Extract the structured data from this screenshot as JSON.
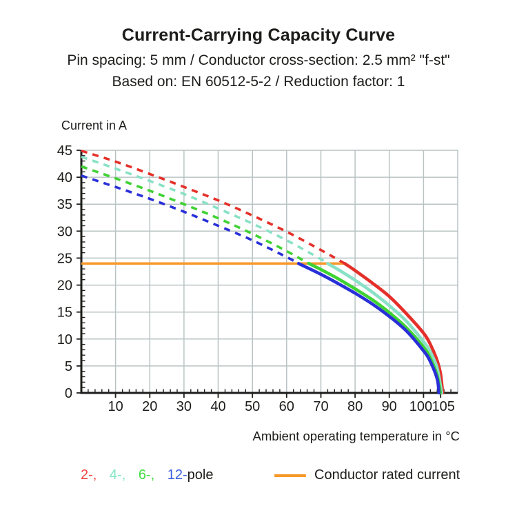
{
  "header": {
    "title": "Current-Carrying Capacity Curve",
    "subtitle1": "Pin spacing: 5 mm / Conductor cross-section: 2.5 mm² \"f-st\"",
    "subtitle2": "Based on: EN 60512-5-2 / Reduction factor: 1"
  },
  "chart_data": {
    "type": "line",
    "title": "Current-Carrying Capacity Curve",
    "ylabel": "Current in A",
    "xlabel": "Ambient operating temperature in °C",
    "x_axis": {
      "min": 0,
      "max": 110,
      "grid_step": 10,
      "minor_step": 2,
      "major_ticks": [
        10,
        20,
        30,
        40,
        50,
        60,
        70,
        80,
        90,
        100,
        105
      ]
    },
    "y_axis": {
      "min": 0,
      "max": 45,
      "grid_step": 5,
      "minor_step": 1,
      "major_ticks": [
        0,
        5,
        10,
        15,
        20,
        25,
        30,
        35,
        40,
        45
      ]
    },
    "grid_on": true,
    "grid_color": "#b9c3c3",
    "axis_color": "#1d1d1b",
    "rated_line": {
      "label": "Conductor rated current",
      "value": 24,
      "x_start": 0,
      "x_end": 77,
      "color": "#f8992c"
    },
    "series": [
      {
        "name": "2-pole",
        "color": "#e4302a",
        "dashed": [
          [
            0,
            44.9
          ],
          [
            10,
            42.9
          ],
          [
            20,
            40.6
          ],
          [
            30,
            38.2
          ],
          [
            40,
            35.7
          ],
          [
            50,
            32.9
          ],
          [
            60,
            29.9
          ],
          [
            70,
            26.5
          ],
          [
            77,
            24
          ]
        ],
        "solid": [
          [
            77,
            24
          ],
          [
            80,
            22.7
          ],
          [
            85,
            20.4
          ],
          [
            90,
            17.9
          ],
          [
            95,
            14.7
          ],
          [
            100,
            11.1
          ],
          [
            102,
            9.0
          ],
          [
            104,
            6.0
          ],
          [
            105,
            3.5
          ],
          [
            105.6,
            0
          ]
        ]
      },
      {
        "name": "4-pole",
        "color": "#89e1c6",
        "dashed": [
          [
            0,
            43.8
          ],
          [
            10,
            41.6
          ],
          [
            20,
            39.3
          ],
          [
            30,
            36.9
          ],
          [
            40,
            34.2
          ],
          [
            50,
            31.4
          ],
          [
            60,
            28.3
          ],
          [
            70,
            24.8
          ],
          [
            72,
            24
          ]
        ],
        "solid": [
          [
            72,
            24
          ],
          [
            75,
            22.9
          ],
          [
            80,
            20.9
          ],
          [
            85,
            18.7
          ],
          [
            90,
            16.2
          ],
          [
            95,
            13.3
          ],
          [
            100,
            9.5
          ],
          [
            102,
            7.6
          ],
          [
            104,
            4.6
          ],
          [
            105.3,
            0
          ]
        ]
      },
      {
        "name": "6-pole",
        "color": "#3fd233",
        "dashed": [
          [
            0,
            42
          ],
          [
            10,
            39.8
          ],
          [
            20,
            37.5
          ],
          [
            30,
            35
          ],
          [
            40,
            32.4
          ],
          [
            50,
            29.5
          ],
          [
            60,
            26.3
          ],
          [
            66.5,
            24
          ]
        ],
        "solid": [
          [
            66.5,
            24
          ],
          [
            70,
            22.9
          ],
          [
            75,
            21.2
          ],
          [
            80,
            19.3
          ],
          [
            85,
            17.3
          ],
          [
            90,
            14.9
          ],
          [
            95,
            12.1
          ],
          [
            100,
            8.5
          ],
          [
            102,
            6.4
          ],
          [
            104,
            3.2
          ],
          [
            104.9,
            0
          ]
        ]
      },
      {
        "name": "12-pole",
        "color": "#2a30d7",
        "dashed": [
          [
            0,
            40.3
          ],
          [
            10,
            38.2
          ],
          [
            20,
            36
          ],
          [
            30,
            33.6
          ],
          [
            40,
            31
          ],
          [
            50,
            28.3
          ],
          [
            60,
            25.2
          ],
          [
            63.5,
            24
          ]
        ],
        "solid": [
          [
            63.5,
            24
          ],
          [
            70,
            22
          ],
          [
            75,
            20.3
          ],
          [
            80,
            18.5
          ],
          [
            85,
            16.5
          ],
          [
            90,
            14.2
          ],
          [
            95,
            11.5
          ],
          [
            100,
            7.8
          ],
          [
            102,
            5.8
          ],
          [
            104,
            2.6
          ],
          [
            104.5,
            0
          ]
        ]
      }
    ]
  },
  "legend": {
    "poles": [
      {
        "label": "2-,",
        "color": "#ef4540"
      },
      {
        "label": "4-,",
        "color": "#7fe5c2"
      },
      {
        "label": "6-,",
        "color": "#3fdd3f"
      },
      {
        "label": "12-",
        "color": "#3a5fe0"
      }
    ],
    "pole_suffix": "pole",
    "rated_label": "Conductor rated current"
  }
}
